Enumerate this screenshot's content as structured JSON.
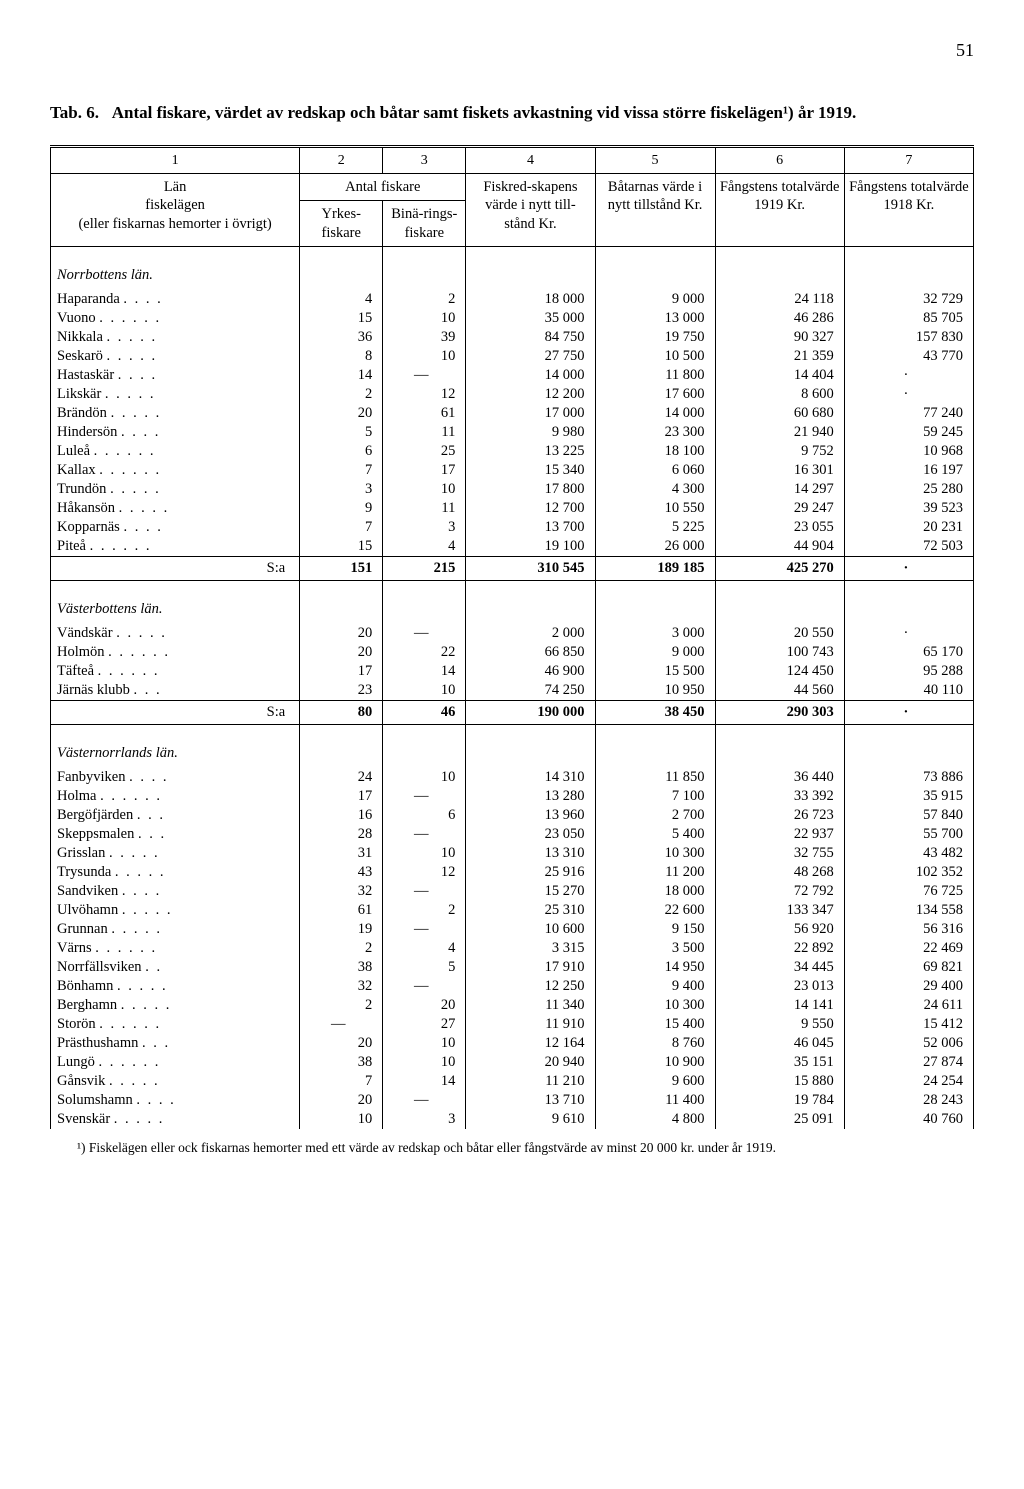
{
  "page_number": "51",
  "title_prefix": "Tab. 6.",
  "title_text": "Antal fiskare, värdet av redskap och båtar samt fiskets avkastning vid vissa större fiskelägen¹) år 1919.",
  "column_numbers": [
    "1",
    "2",
    "3",
    "4",
    "5",
    "6",
    "7"
  ],
  "head": {
    "col1_a": "Län",
    "col1_b": "fiskelägen",
    "col1_c": "(eller fiskarnas hemorter i övrigt)",
    "span23": "Antal fiskare",
    "col2": "Yrkes-fiskare",
    "col3": "Binä-rings-fiskare",
    "col4": "Fiskred-skapens värde i nytt till-stånd Kr.",
    "col5": "Båtarnas värde i nytt tillstånd Kr.",
    "col6": "Fångstens totalvärde 1919 Kr.",
    "col7": "Fångstens totalvärde 1918 Kr."
  },
  "sections": [
    {
      "heading": "Norrbottens län.",
      "rows": [
        {
          "loc": "Haparanda",
          "c2": "4",
          "c3": "2",
          "c4": "18 000",
          "c5": "9 000",
          "c6": "24 118",
          "c7": "32 729"
        },
        {
          "loc": "Vuono",
          "c2": "15",
          "c3": "10",
          "c4": "35 000",
          "c5": "13 000",
          "c6": "46 286",
          "c7": "85 705"
        },
        {
          "loc": "Nikkala",
          "c2": "36",
          "c3": "39",
          "c4": "84 750",
          "c5": "19 750",
          "c6": "90 327",
          "c7": "157 830"
        },
        {
          "loc": "Seskarö",
          "c2": "8",
          "c3": "10",
          "c4": "27 750",
          "c5": "10 500",
          "c6": "21 359",
          "c7": "43 770"
        },
        {
          "loc": "Hastaskär",
          "c2": "14",
          "c3": "—",
          "c4": "14 000",
          "c5": "11 800",
          "c6": "14 404",
          "c7": "·"
        },
        {
          "loc": "Likskär",
          "c2": "2",
          "c3": "12",
          "c4": "12 200",
          "c5": "17 600",
          "c6": "8 600",
          "c7": "·"
        },
        {
          "loc": "Brändön",
          "c2": "20",
          "c3": "61",
          "c4": "17 000",
          "c5": "14 000",
          "c6": "60 680",
          "c7": "77 240"
        },
        {
          "loc": "Hindersön",
          "c2": "5",
          "c3": "11",
          "c4": "9 980",
          "c5": "23 300",
          "c6": "21 940",
          "c7": "59 245"
        },
        {
          "loc": "Luleå",
          "c2": "6",
          "c3": "25",
          "c4": "13 225",
          "c5": "18 100",
          "c6": "9 752",
          "c7": "10 968"
        },
        {
          "loc": "Kallax",
          "c2": "7",
          "c3": "17",
          "c4": "15 340",
          "c5": "6 060",
          "c6": "16 301",
          "c7": "16 197"
        },
        {
          "loc": "Trundön",
          "c2": "3",
          "c3": "10",
          "c4": "17 800",
          "c5": "4 300",
          "c6": "14 297",
          "c7": "25 280"
        },
        {
          "loc": "Håkansön",
          "c2": "9",
          "c3": "11",
          "c4": "12 700",
          "c5": "10 550",
          "c6": "29 247",
          "c7": "39 523"
        },
        {
          "loc": "Kopparnäs",
          "c2": "7",
          "c3": "3",
          "c4": "13 700",
          "c5": "5 225",
          "c6": "23 055",
          "c7": "20 231"
        },
        {
          "loc": "Piteå",
          "c2": "15",
          "c3": "4",
          "c4": "19 100",
          "c5": "26 000",
          "c6": "44 904",
          "c7": "72 503"
        }
      ],
      "sum": {
        "label": "S:a",
        "c2": "151",
        "c3": "215",
        "c4": "310 545",
        "c5": "189 185",
        "c6": "425 270",
        "c7": "·"
      }
    },
    {
      "heading": "Västerbottens län.",
      "rows": [
        {
          "loc": "Vändskär",
          "c2": "20",
          "c3": "—",
          "c4": "2 000",
          "c5": "3 000",
          "c6": "20 550",
          "c7": "·"
        },
        {
          "loc": "Holmön",
          "c2": "20",
          "c3": "22",
          "c4": "66 850",
          "c5": "9 000",
          "c6": "100 743",
          "c7": "65 170"
        },
        {
          "loc": "Täfteå",
          "c2": "17",
          "c3": "14",
          "c4": "46 900",
          "c5": "15 500",
          "c6": "124 450",
          "c7": "95 288"
        },
        {
          "loc": "Järnäs klubb",
          "c2": "23",
          "c3": "10",
          "c4": "74 250",
          "c5": "10 950",
          "c6": "44 560",
          "c7": "40 110"
        }
      ],
      "sum": {
        "label": "S:a",
        "c2": "80",
        "c3": "46",
        "c4": "190 000",
        "c5": "38 450",
        "c6": "290 303",
        "c7": "·"
      }
    },
    {
      "heading": "Västernorrlands län.",
      "rows": [
        {
          "loc": "Fanbyviken",
          "c2": "24",
          "c3": "10",
          "c4": "14 310",
          "c5": "11 850",
          "c6": "36 440",
          "c7": "73 886"
        },
        {
          "loc": "Holma",
          "c2": "17",
          "c3": "—",
          "c4": "13 280",
          "c5": "7 100",
          "c6": "33 392",
          "c7": "35 915"
        },
        {
          "loc": "Bergöfjärden",
          "c2": "16",
          "c3": "6",
          "c4": "13 960",
          "c5": "2 700",
          "c6": "26 723",
          "c7": "57 840"
        },
        {
          "loc": "Skeppsmalen",
          "c2": "28",
          "c3": "—",
          "c4": "23 050",
          "c5": "5 400",
          "c6": "22 937",
          "c7": "55 700"
        },
        {
          "loc": "Grisslan",
          "c2": "31",
          "c3": "10",
          "c4": "13 310",
          "c5": "10 300",
          "c6": "32 755",
          "c7": "43 482"
        },
        {
          "loc": "Trysunda",
          "c2": "43",
          "c3": "12",
          "c4": "25 916",
          "c5": "11 200",
          "c6": "48 268",
          "c7": "102 352"
        },
        {
          "loc": "Sandviken",
          "c2": "32",
          "c3": "—",
          "c4": "15 270",
          "c5": "18 000",
          "c6": "72 792",
          "c7": "76 725"
        },
        {
          "loc": "Ulvöhamn",
          "c2": "61",
          "c3": "2",
          "c4": "25 310",
          "c5": "22 600",
          "c6": "133 347",
          "c7": "134 558"
        },
        {
          "loc": "Grunnan",
          "c2": "19",
          "c3": "—",
          "c4": "10 600",
          "c5": "9 150",
          "c6": "56 920",
          "c7": "56 316"
        },
        {
          "loc": "Värns",
          "c2": "2",
          "c3": "4",
          "c4": "3 315",
          "c5": "3 500",
          "c6": "22 892",
          "c7": "22 469"
        },
        {
          "loc": "Norrfällsviken",
          "c2": "38",
          "c3": "5",
          "c4": "17 910",
          "c5": "14 950",
          "c6": "34 445",
          "c7": "69 821"
        },
        {
          "loc": "Bönhamn",
          "c2": "32",
          "c3": "—",
          "c4": "12 250",
          "c5": "9 400",
          "c6": "23 013",
          "c7": "29 400"
        },
        {
          "loc": "Berghamn",
          "c2": "2",
          "c3": "20",
          "c4": "11 340",
          "c5": "10 300",
          "c6": "14 141",
          "c7": "24 611"
        },
        {
          "loc": "Storön",
          "c2": "—",
          "c3": "27",
          "c4": "11 910",
          "c5": "15 400",
          "c6": "9 550",
          "c7": "15 412"
        },
        {
          "loc": "Prästhushamn",
          "c2": "20",
          "c3": "10",
          "c4": "12 164",
          "c5": "8 760",
          "c6": "46 045",
          "c7": "52 006"
        },
        {
          "loc": "Lungö",
          "c2": "38",
          "c3": "10",
          "c4": "20 940",
          "c5": "10 900",
          "c6": "35 151",
          "c7": "27 874"
        },
        {
          "loc": "Gånsvik",
          "c2": "7",
          "c3": "14",
          "c4": "11 210",
          "c5": "9 600",
          "c6": "15 880",
          "c7": "24 254"
        },
        {
          "loc": "Solumshamn",
          "c2": "20",
          "c3": "—",
          "c4": "13 710",
          "c5": "11 400",
          "c6": "19 784",
          "c7": "28 243"
        },
        {
          "loc": "Svenskär",
          "c2": "10",
          "c3": "3",
          "c4": "9 610",
          "c5": "4 800",
          "c6": "25 091",
          "c7": "40 760"
        }
      ]
    }
  ],
  "footnote": "¹) Fiskelägen eller ock fiskarnas hemorter med ett värde av redskap och båtar eller fångstvärde av minst 20 000 kr. under år 1919."
}
